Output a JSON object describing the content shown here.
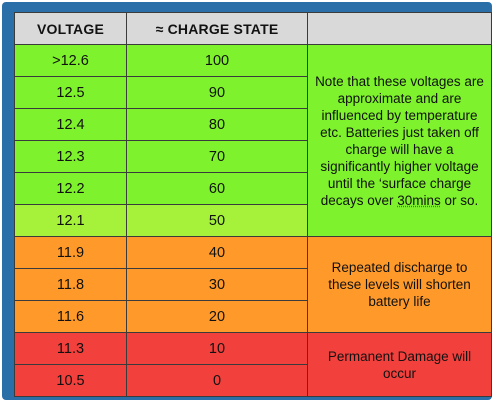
{
  "table": {
    "headers": [
      "VOLTAGE",
      "≈ CHARGE STATE",
      ""
    ],
    "rows": [
      {
        "voltage": ">12.6",
        "charge": "100",
        "color": "#7ef22c"
      },
      {
        "voltage": "12.5",
        "charge": "90",
        "color": "#7ef22c"
      },
      {
        "voltage": "12.4",
        "charge": "80",
        "color": "#7ef22c"
      },
      {
        "voltage": "12.3",
        "charge": "70",
        "color": "#7ef22c"
      },
      {
        "voltage": "12.2",
        "charge": "60",
        "color": "#7ef22c"
      },
      {
        "voltage": "12.1",
        "charge": "50",
        "color": "#a6f23a"
      },
      {
        "voltage": "11.9",
        "charge": "40",
        "color": "#ff9a2a"
      },
      {
        "voltage": "11.8",
        "charge": "30",
        "color": "#ff9a2a"
      },
      {
        "voltage": "11.6",
        "charge": "20",
        "color": "#ff9a2a"
      },
      {
        "voltage": "11.3",
        "charge": "10",
        "color": "#f2403d"
      },
      {
        "voltage": "10.5",
        "charge": "0",
        "color": "#f2403d"
      }
    ],
    "notes": [
      {
        "text": "Note that these voltages are approximate and are influenced by temperature etc. Batteries just taken off charge will have a significantly higher voltage until the ‘surface charge decays over",
        "underlined": "30mins",
        "tail": " or so.",
        "color": "#7ef22c"
      },
      {
        "text": "Repeated discharge to these levels will shorten battery life",
        "color": "#ff9a2a"
      },
      {
        "text": "Permanent Damage will occur",
        "color": "#f2403d"
      }
    ]
  }
}
